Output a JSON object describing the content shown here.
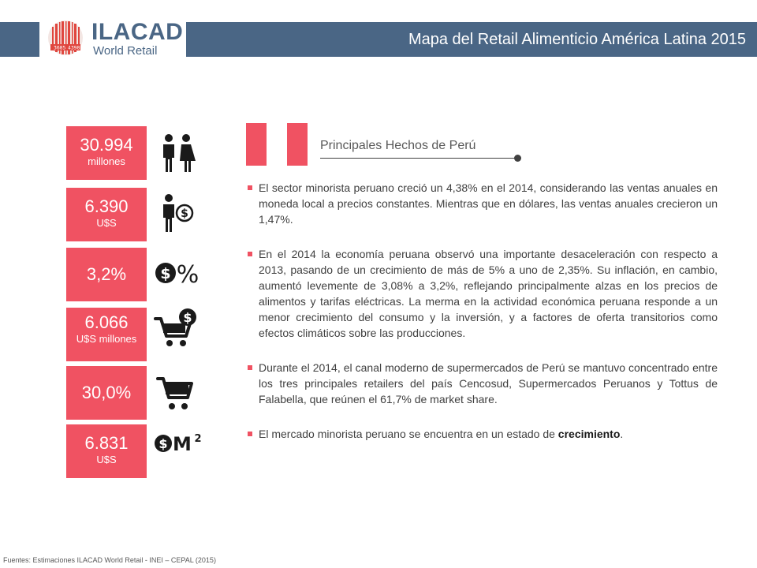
{
  "header": {
    "title": "Mapa del Retail Alimenticio América Latina 2015",
    "accent_color": "#4a6685"
  },
  "logo": {
    "name": "ILACAD",
    "subtitle": "World Retail",
    "icon": "barcode-logo-icon"
  },
  "stats": [
    {
      "value": "30.994",
      "unit": "millones",
      "icon": "people-icon"
    },
    {
      "value": "6.390",
      "unit": "U$S",
      "icon": "person-money-icon"
    },
    {
      "value": "3,2%",
      "unit": "",
      "icon": "dollar-percent-icon"
    },
    {
      "value": "6.066",
      "unit": "U$S millones",
      "icon": "cart-dollar-icon"
    },
    {
      "value": "30,0%",
      "unit": "",
      "icon": "cart-icon"
    },
    {
      "value": "6.831",
      "unit": "U$S",
      "icon": "dollar-m2-icon"
    }
  ],
  "stat_color": "#f05262",
  "section": {
    "title": "Principales Hechos de Perú",
    "flag": "peru-flag-icon"
  },
  "bullets": [
    {
      "text": "El sector minorista peruano creció un 4,38% en el 2014, considerando las ventas anuales en moneda local a precios constantes. Mientras que en dólares, las ventas anuales crecieron un 1,47%."
    },
    {
      "text": "En el 2014 la economía peruana observó una importante desaceleración con respecto a 2013, pasando de un crecimiento de más de 5% a uno de 2,35%. Su inflación, en cambio, aumentó levemente de 3,08% a 3,2%, reflejando principalmente alzas en los precios de alimentos y tarifas eléctricas. La merma en la actividad económica peruana responde a un menor crecimiento del consumo y la inversión, y a factores de oferta transitorios como efectos climáticos sobre las producciones."
    },
    {
      "text": "Durante el 2014, el canal moderno de supermercados de Perú se mantuvo concentrado entre los tres principales retailers del país Cencosud, Supermercados Peruanos y Tottus de Falabella, que reúnen el 61,7% de market share."
    },
    {
      "text": "El mercado minorista peruano se encuentra en un estado de ",
      "bold": "crecimiento",
      "end": "."
    }
  ],
  "footer": "Fuentes: Estimaciones ILACAD World Retail - INEI – CEPAL (2015)"
}
